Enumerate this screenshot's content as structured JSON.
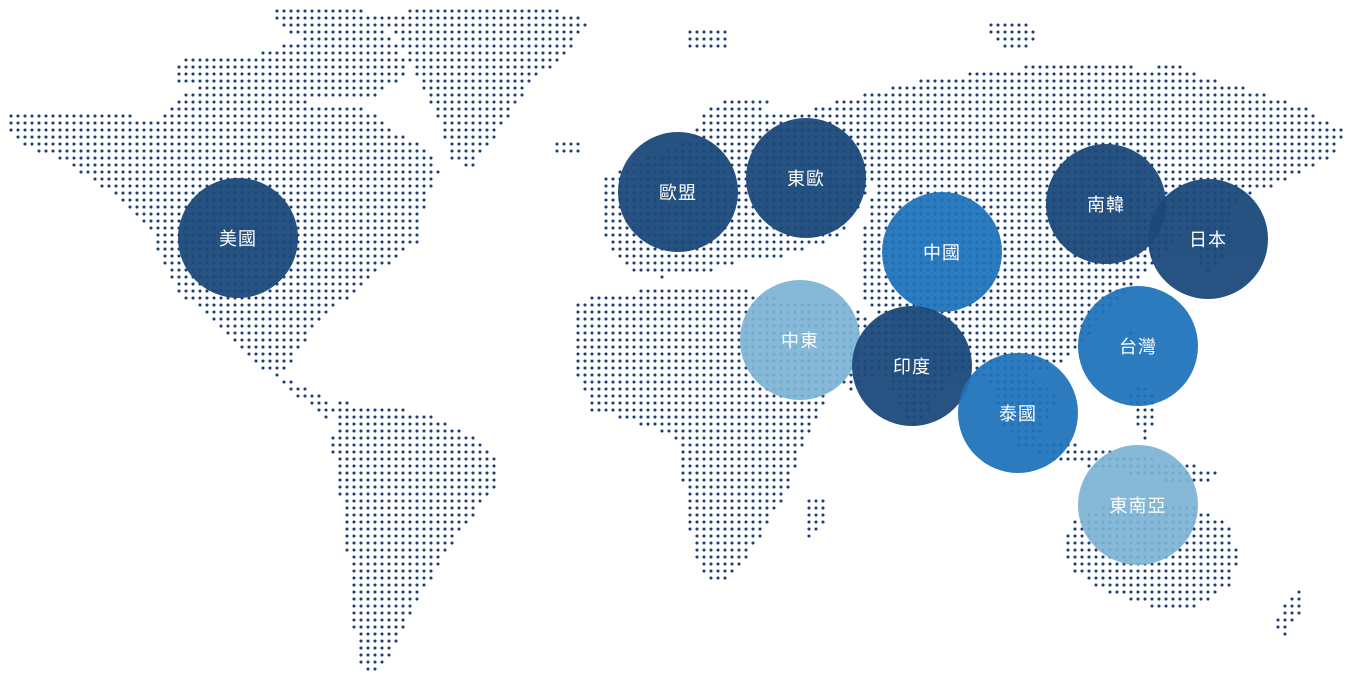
{
  "colors": {
    "dot": "#1c3f73",
    "dark": "#1b497b",
    "mid": "#1e72bb",
    "light": "#7cb3d4",
    "label": "#ffffff"
  },
  "regions": [
    {
      "id": "usa",
      "label": "美國",
      "tone": "dark"
    },
    {
      "id": "eu",
      "label": "歐盟",
      "tone": "dark"
    },
    {
      "id": "eastern-europe",
      "label": "東歐",
      "tone": "dark"
    },
    {
      "id": "china",
      "label": "中國",
      "tone": "mid"
    },
    {
      "id": "south-korea",
      "label": "南韓",
      "tone": "dark"
    },
    {
      "id": "japan",
      "label": "日本",
      "tone": "dark"
    },
    {
      "id": "middle-east",
      "label": "中東",
      "tone": "light"
    },
    {
      "id": "india",
      "label": "印度",
      "tone": "dark"
    },
    {
      "id": "taiwan",
      "label": "台灣",
      "tone": "mid"
    },
    {
      "id": "thailand",
      "label": "泰國",
      "tone": "mid"
    },
    {
      "id": "southeast-asia",
      "label": "東南亞",
      "tone": "light"
    }
  ]
}
